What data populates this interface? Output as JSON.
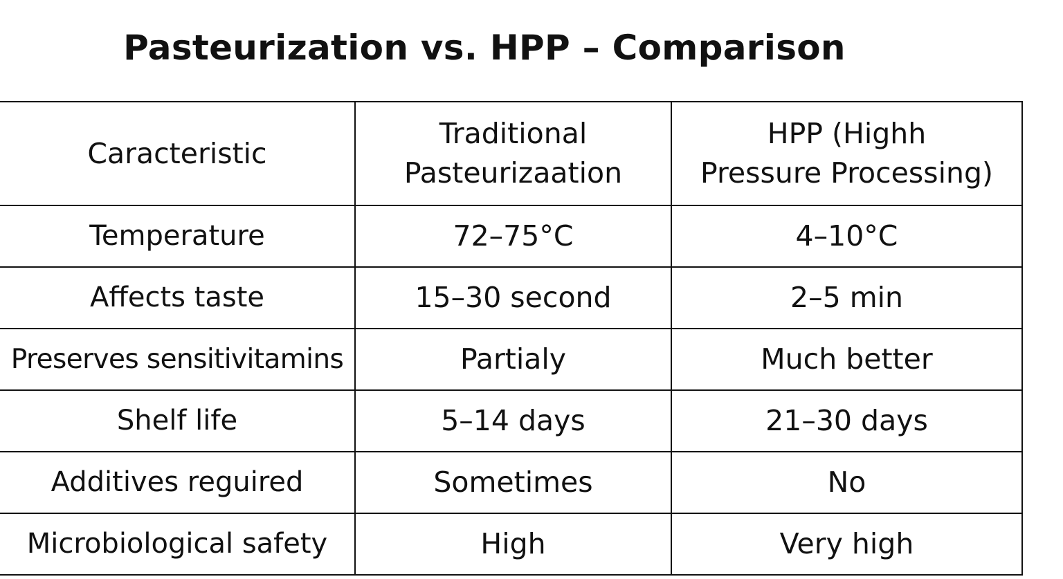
{
  "chart_data": {
    "type": "table",
    "title": "Pasteurization vs. HPP – Comparison",
    "columns": [
      "Caracteristic",
      "Traditional Pasteurizaation",
      "HPP (Highh Pressure Processing)"
    ],
    "column_lines": [
      [
        "Caracteristic"
      ],
      [
        "Traditional",
        "Pasteurizaation"
      ],
      [
        "HPP (Highh",
        "Pressure Processing)"
      ]
    ],
    "rows": [
      [
        "Temperature",
        "72–75°C",
        "4–10°C"
      ],
      [
        "Affects taste",
        "15–30 second",
        "2–5 min"
      ],
      [
        "Preserves sensitivitamins",
        "Partialy",
        "Much better"
      ],
      [
        "Shelf life",
        "5–14 days",
        "21–30 days"
      ],
      [
        "Additives reguired",
        "Sometimes",
        "No"
      ],
      [
        "Microbiological safety",
        "High",
        "Very high"
      ]
    ]
  }
}
